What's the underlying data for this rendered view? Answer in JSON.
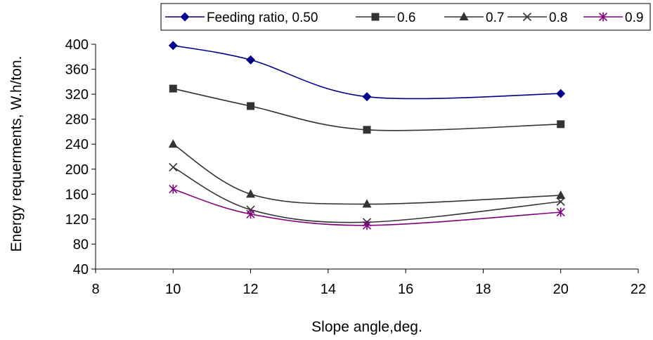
{
  "chart_data": {
    "type": "line",
    "title": "",
    "xlabel": "Slope angle,deg.",
    "ylabel": "Energy requerments, W.h/ton.",
    "xlim": [
      8,
      22
    ],
    "ylim": [
      40,
      400
    ],
    "xticks": [
      8,
      10,
      12,
      14,
      16,
      18,
      20,
      22
    ],
    "yticks": [
      40,
      80,
      120,
      160,
      200,
      240,
      280,
      320,
      360,
      400
    ],
    "grid": false,
    "legend_position": "top",
    "x": [
      10,
      12,
      15,
      20
    ],
    "series": [
      {
        "name": "Feeding ratio, 0.50",
        "values": [
          398,
          375,
          316,
          321
        ],
        "color": "#00008B",
        "marker": "diamond"
      },
      {
        "name": "0.6",
        "values": [
          329,
          301,
          263,
          272
        ],
        "color": "#333333",
        "marker": "square"
      },
      {
        "name": "0.7",
        "values": [
          240,
          160,
          144,
          158
        ],
        "color": "#333333",
        "marker": "triangle"
      },
      {
        "name": "0.8",
        "values": [
          203,
          135,
          115,
          148
        ],
        "color": "#333333",
        "marker": "x"
      },
      {
        "name": "0.9",
        "values": [
          168,
          128,
          110,
          131
        ],
        "color": "#800080",
        "marker": "asterisk"
      }
    ]
  }
}
